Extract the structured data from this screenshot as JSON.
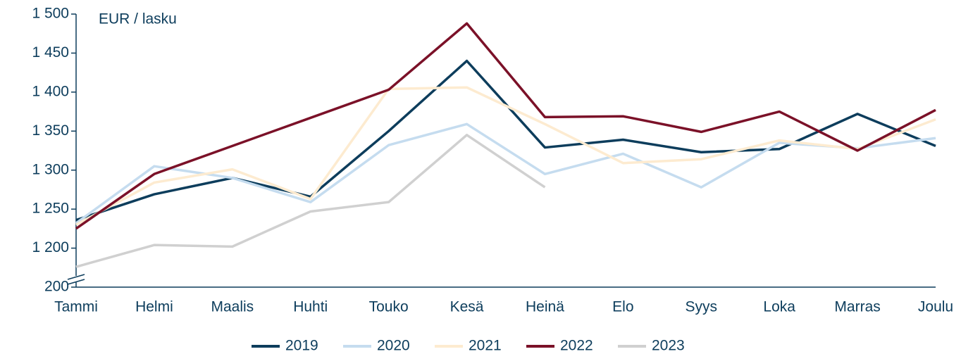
{
  "chart_data": {
    "type": "line",
    "y_label": "EUR / lasku",
    "categories": [
      "Tammi",
      "Helmi",
      "Maalis",
      "Huhti",
      "Touko",
      "Kesä",
      "Heinä",
      "Elo",
      "Syys",
      "Loka",
      "Marras",
      "Joulu"
    ],
    "series": [
      {
        "name": "2019",
        "color": "#0d3d5c",
        "values": [
          1236,
          1269,
          1290,
          1266,
          1350,
          1440,
          1329,
          1339,
          1323,
          1327,
          1372,
          1331
        ]
      },
      {
        "name": "2020",
        "color": "#c5dcef",
        "values": [
          1232,
          1305,
          1290,
          1259,
          1332,
          1359,
          1295,
          1321,
          1278,
          1335,
          1328,
          1341
        ]
      },
      {
        "name": "2021",
        "color": "#fdebd0",
        "values": [
          1230,
          1284,
          1301,
          1263,
          1404,
          1406,
          1359,
          1309,
          1314,
          1338,
          1327,
          1365
        ]
      },
      {
        "name": "2022",
        "color": "#7b1128",
        "values": [
          1225,
          1295,
          1331,
          1367,
          1403,
          1488,
          1368,
          1369,
          1349,
          1375,
          1325,
          1377
        ]
      },
      {
        "name": "2023",
        "color": "#d0d0d0",
        "values": [
          1176,
          1204,
          1202,
          1247,
          1259,
          1345,
          1278,
          null,
          null,
          null,
          null,
          null
        ]
      }
    ],
    "ylim": [
      200,
      1500
    ],
    "yticks": [
      200,
      {
        "value": 1200,
        "label": "1 200"
      },
      {
        "value": 1250,
        "label": "1 250"
      },
      {
        "value": 1300,
        "label": "1 300"
      },
      {
        "value": 1350,
        "label": "1 350"
      },
      {
        "value": 1400,
        "label": "1 400"
      },
      {
        "value": 1450,
        "label": "1 450"
      },
      {
        "value": 1500,
        "label": "1 500"
      }
    ],
    "axis_break": true,
    "legend": "bottom"
  }
}
